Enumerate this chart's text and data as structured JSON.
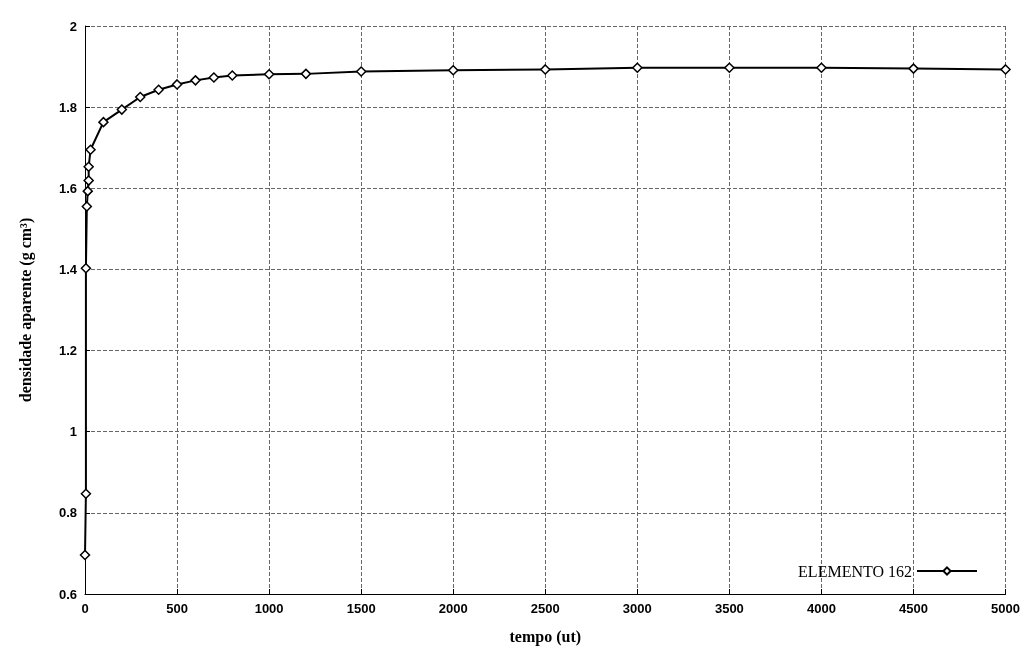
{
  "chart_data": {
    "type": "line",
    "xlabel": "tempo (ut)",
    "ylabel": "densidade aparente (g cm³)",
    "xlim": [
      0,
      5000
    ],
    "xticks": [
      0,
      500,
      1000,
      1500,
      2000,
      2500,
      3000,
      3500,
      4000,
      4500,
      5000
    ],
    "ylim": [
      0.6,
      2
    ],
    "yticks": [
      0.6,
      0.8,
      1,
      1.2,
      1.4,
      1.6,
      1.8,
      2
    ],
    "grid": true,
    "legend": "bottom right",
    "marker": "diamond",
    "line_style": "solid",
    "series": [
      {
        "name": "ELEMENTO 162",
        "color": "#000000",
        "x": [
          0,
          5,
          5,
          10,
          15,
          20,
          20,
          30,
          100,
          200,
          300,
          400,
          500,
          600,
          700,
          800,
          1000,
          1200,
          1500,
          2000,
          2500,
          3000,
          3500,
          4000,
          4500,
          5000
        ],
        "values": [
          0.696,
          0.847,
          1.403,
          1.555,
          1.593,
          1.619,
          1.653,
          1.695,
          1.763,
          1.794,
          1.825,
          1.843,
          1.856,
          1.866,
          1.873,
          1.878,
          1.881,
          1.882,
          1.888,
          1.891,
          1.893,
          1.897,
          1.897,
          1.897,
          1.895,
          1.893
        ]
      }
    ]
  }
}
